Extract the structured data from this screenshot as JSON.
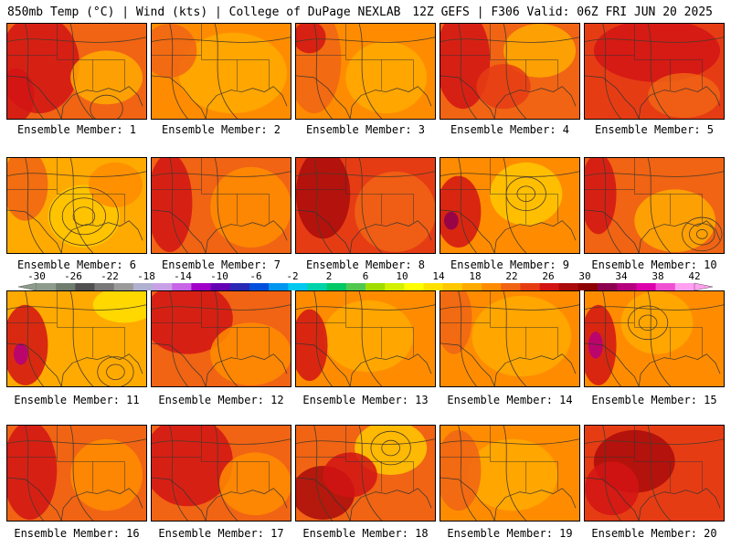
{
  "header": {
    "left": "850mb Temp (°C) | Wind (kts) | College of DuPage NEXLAB",
    "right": "12Z GEFS | F306 Valid: 06Z FRI JUN 20 2025"
  },
  "colorbar": {
    "labels": [
      "-30",
      "-26",
      "-22",
      "-18",
      "-14",
      "-10",
      "-6",
      "-2",
      "2",
      "6",
      "10",
      "14",
      "18",
      "22",
      "26",
      "30",
      "34",
      "38",
      "42"
    ],
    "colors": [
      "#8c9b8c",
      "#6e7d6e",
      "#505050",
      "#787878",
      "#9a9a9a",
      "#b0b0d0",
      "#c8a0e6",
      "#c864e6",
      "#a000c8",
      "#6400b4",
      "#2828b4",
      "#0050dc",
      "#0096f0",
      "#00c8f0",
      "#00d2aa",
      "#00c864",
      "#50c850",
      "#a0dc00",
      "#d2f000",
      "#ffff00",
      "#ffe100",
      "#ffc800",
      "#ffaa00",
      "#ff8c00",
      "#f06414",
      "#e63c14",
      "#d21414",
      "#aa0a0a",
      "#8c0000",
      "#8c0050",
      "#b4007d",
      "#dc00aa",
      "#f050d2",
      "#ffa0f0"
    ]
  },
  "panels": [
    {
      "caption": "Ensemble Member: 1"
    },
    {
      "caption": "Ensemble Member: 2"
    },
    {
      "caption": "Ensemble Member: 3"
    },
    {
      "caption": "Ensemble Member: 4"
    },
    {
      "caption": "Ensemble Member: 5"
    },
    {
      "caption": "Ensemble Member: 6"
    },
    {
      "caption": "Ensemble Member: 7"
    },
    {
      "caption": "Ensemble Member: 8"
    },
    {
      "caption": "Ensemble Member: 9"
    },
    {
      "caption": "Ensemble Member: 10"
    },
    {
      "caption": "Ensemble Member: 11"
    },
    {
      "caption": "Ensemble Member: 12"
    },
    {
      "caption": "Ensemble Member: 13"
    },
    {
      "caption": "Ensemble Member: 14"
    },
    {
      "caption": "Ensemble Member: 15"
    },
    {
      "caption": "Ensemble Member: 16"
    },
    {
      "caption": "Ensemble Member: 17"
    },
    {
      "caption": "Ensemble Member: 18"
    },
    {
      "caption": "Ensemble Member: 19"
    },
    {
      "caption": "Ensemble Member: 20"
    }
  ]
}
